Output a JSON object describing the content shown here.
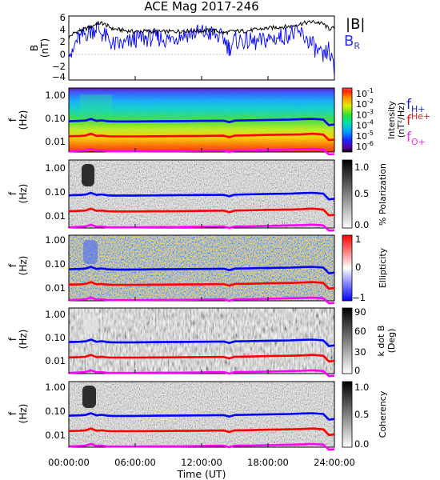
{
  "title": "ACE Mag 2017-246",
  "xlabel": "Time (UT)",
  "x_ticks": [
    "00:00:00",
    "06:00:00",
    "12:00:00",
    "18:00:00",
    "24:00:00"
  ],
  "colors": {
    "bmag": "#000000",
    "br": "#0000ff",
    "fH": "#0000ff",
    "fHe": "#ff0000",
    "fO": "#ff00ff",
    "legend_bmag": "#000000",
    "legend_br": "#2a2aff",
    "legend_fH": "#2020cc",
    "legend_fHe": "#dd2222",
    "legend_fO": "#ee33ee"
  },
  "panels": [
    {
      "id": "B",
      "ylabel_1": "B",
      "ylabel_2": "(nT)",
      "y_ticks": [
        "6",
        "4",
        "2",
        "0",
        "−2",
        "−4"
      ],
      "legend": [
        {
          "main": "|B|"
        },
        {
          "main": "B",
          "sub": "R"
        }
      ]
    },
    {
      "id": "intensity",
      "ylabel_1": "f",
      "ylabel_2": "(Hz)",
      "y_ticks": [
        "1.00",
        "0.10",
        "0.01"
      ],
      "colorbar_label_1": "Intensity",
      "colorbar_label_2": "(nT²/Hz)",
      "colorbar_ticks": [
        {
          "base": "10",
          "exp": "-1"
        },
        {
          "base": "10",
          "exp": "-2"
        },
        {
          "base": "10",
          "exp": "-3"
        },
        {
          "base": "10",
          "exp": "-4"
        },
        {
          "base": "10",
          "exp": "-5"
        },
        {
          "base": "10",
          "exp": "-6"
        }
      ],
      "gyro_labels": [
        {
          "main": "f",
          "sub": "H+"
        },
        {
          "main": "f",
          "sub": "He+"
        },
        {
          "main": "f",
          "sub": "O+"
        }
      ]
    },
    {
      "id": "polarization",
      "ylabel_1": "f",
      "ylabel_2": "(Hz)",
      "y_ticks": [
        "1.00",
        "0.10",
        "0.01"
      ],
      "colorbar_label_1": "% Polarization",
      "colorbar_ticks": [
        "1.0",
        "0.5",
        "0.0"
      ]
    },
    {
      "id": "ellipticity",
      "ylabel_1": "f",
      "ylabel_2": "(Hz)",
      "y_ticks": [
        "1.00",
        "0.10",
        "0.01"
      ],
      "colorbar_label_1": "Ellipticity",
      "colorbar_ticks": [
        "1",
        "0",
        "−1"
      ]
    },
    {
      "id": "kdotb",
      "ylabel_1": "f",
      "ylabel_2": "(Hz)",
      "y_ticks": [
        "1.00",
        "0.10",
        "0.01"
      ],
      "colorbar_label_1": "k dot B",
      "colorbar_label_2": "(Deg)",
      "colorbar_ticks": [
        "90",
        "60",
        "30",
        "0"
      ]
    },
    {
      "id": "coherency",
      "ylabel_1": "f",
      "ylabel_2": "(Hz)",
      "y_ticks": [
        "1.00",
        "0.10",
        "0.01"
      ],
      "colorbar_label_1": "Coherency",
      "colorbar_ticks": [
        "1.0",
        "0.5",
        "0.0"
      ]
    }
  ],
  "chart_data": {
    "type": "line",
    "title": "ACE Mag 2017-246",
    "xlabel": "Time (UT)",
    "x_unit": "hours",
    "xlim": [
      0,
      24
    ],
    "line_panel": {
      "ylabel": "B (nT)",
      "ylim": [
        -4.5,
        6.5
      ],
      "series": [
        {
          "name": "|B|",
          "x": [
            0,
            0.5,
            1,
            1.5,
            2,
            2.5,
            3,
            3.5,
            4,
            5,
            6,
            7,
            8,
            9,
            10,
            11,
            12,
            13,
            14,
            15,
            16,
            17,
            18,
            19,
            20,
            21,
            22,
            22.5,
            23,
            23.5,
            24
          ],
          "y": [
            2.8,
            3.6,
            4.0,
            4.3,
            4.6,
            5.2,
            5.3,
            4.8,
            4.3,
            4.0,
            3.8,
            3.9,
            3.8,
            3.8,
            3.9,
            4.0,
            3.9,
            4.1,
            3.6,
            3.9,
            3.9,
            4.2,
            4.4,
            4.6,
            4.7,
            5.2,
            5.5,
            5.4,
            5.1,
            4.3,
            4.4
          ]
        },
        {
          "name": "B",
          "x": [
            0,
            0.3,
            0.6,
            1,
            1.5,
            2,
            2.5,
            3,
            3.5,
            4,
            5,
            6,
            7,
            8,
            9,
            10,
            11,
            12,
            13,
            14,
            14.5,
            15,
            16,
            17,
            18,
            19,
            20,
            21,
            22,
            22.5,
            23,
            23.5,
            24
          ],
          "y": [
            1.5,
            -0.5,
            2.0,
            2.6,
            3.5,
            3.8,
            4.6,
            3.4,
            2.7,
            1.6,
            1.6,
            2.5,
            2.7,
            2.8,
            2.4,
            3.2,
            3.5,
            3.7,
            3.4,
            2.6,
            1.0,
            2.3,
            2.2,
            1.9,
            2.5,
            2.8,
            3.5,
            3.4,
            1.6,
            0.2,
            -0.8,
            0.9,
            -3.2
          ]
        }
      ]
    },
    "frequency_panels": {
      "y_scale": "log",
      "ylim_hz": [
        0.0035,
        1.3
      ],
      "panels": [
        "Intensity (nT²/Hz)",
        "% Polarization",
        "Ellipticity",
        "k dot B (Deg)",
        "Coherency"
      ],
      "series": [
        {
          "name": "fH+",
          "x": [
            0,
            1,
            1.5,
            2,
            2.5,
            3,
            3.5,
            4,
            6,
            8,
            10,
            12,
            14,
            14.5,
            15,
            16,
            18,
            20,
            21,
            22,
            23,
            23.5,
            24
          ],
          "y": [
            0.06,
            0.062,
            0.064,
            0.075,
            0.062,
            0.065,
            0.06,
            0.059,
            0.059,
            0.06,
            0.061,
            0.062,
            0.063,
            0.055,
            0.064,
            0.065,
            0.068,
            0.07,
            0.073,
            0.075,
            0.07,
            0.042,
            0.045
          ]
        },
        {
          "name": "fHe+",
          "x": [
            0,
            1,
            1.5,
            2,
            2.5,
            3,
            3.5,
            4,
            6,
            8,
            10,
            12,
            14,
            14.5,
            15,
            16,
            18,
            20,
            21,
            22,
            23,
            23.5,
            24
          ],
          "y": [
            0.015,
            0.0155,
            0.016,
            0.019,
            0.0155,
            0.016,
            0.015,
            0.0148,
            0.0148,
            0.015,
            0.0152,
            0.0155,
            0.0158,
            0.0138,
            0.016,
            0.0162,
            0.017,
            0.0175,
            0.018,
            0.019,
            0.0175,
            0.0105,
            0.011
          ]
        },
        {
          "name": "fO+",
          "x": [
            0,
            1,
            1.5,
            2,
            2.5,
            3,
            3.5,
            4,
            6,
            8,
            10,
            12,
            14,
            14.5,
            15,
            16,
            18,
            20,
            21,
            22,
            23,
            23.5,
            24
          ],
          "y": [
            0.0037,
            0.0039,
            0.004,
            0.0047,
            0.0039,
            0.004,
            0.0037,
            0.0037,
            0.0037,
            0.0038,
            0.0038,
            0.0039,
            0.004,
            0.0035,
            0.004,
            0.004,
            0.0042,
            0.0044,
            0.0045,
            0.0047,
            0.0044,
            0.0028,
            0.0029
          ]
        }
      ]
    }
  }
}
